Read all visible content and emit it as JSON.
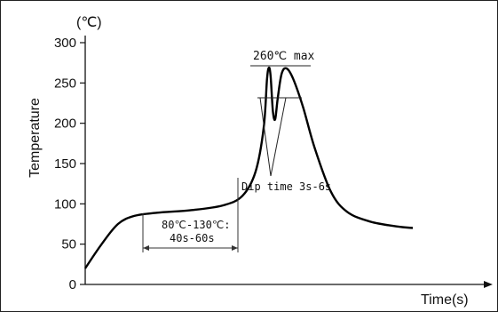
{
  "chart_data": {
    "type": "line",
    "ylabel": "Temperature",
    "yunit": "(℃)",
    "xlabel": "Time(s)",
    "ylim": [
      0,
      300
    ],
    "yticks": [
      0,
      50,
      100,
      150,
      200,
      250,
      300
    ],
    "grid": false,
    "series": [
      {
        "points": [
          {
            "t": 0,
            "y": 20
          },
          {
            "t": 0.05,
            "y": 50
          },
          {
            "t": 0.1,
            "y": 75
          },
          {
            "t": 0.15,
            "y": 85
          },
          {
            "t": 0.22,
            "y": 89
          },
          {
            "t": 0.32,
            "y": 92
          },
          {
            "t": 0.42,
            "y": 98
          },
          {
            "t": 0.48,
            "y": 110
          },
          {
            "t": 0.52,
            "y": 140
          },
          {
            "t": 0.545,
            "y": 195
          },
          {
            "t": 0.555,
            "y": 255
          },
          {
            "t": 0.561,
            "y": 269
          },
          {
            "t": 0.566,
            "y": 258
          },
          {
            "t": 0.573,
            "y": 215
          },
          {
            "t": 0.58,
            "y": 205
          },
          {
            "t": 0.588,
            "y": 232
          },
          {
            "t": 0.6,
            "y": 262
          },
          {
            "t": 0.615,
            "y": 268
          },
          {
            "t": 0.635,
            "y": 255
          },
          {
            "t": 0.665,
            "y": 220
          },
          {
            "t": 0.7,
            "y": 170
          },
          {
            "t": 0.75,
            "y": 115
          },
          {
            "t": 0.8,
            "y": 90
          },
          {
            "t": 0.87,
            "y": 78
          },
          {
            "t": 0.95,
            "y": 72
          },
          {
            "t": 1.0,
            "y": 70
          }
        ]
      }
    ],
    "annotations": {
      "peak_label": "260℃ max",
      "preheat_line1": "80℃-130℃:",
      "preheat_line2": "40s-60s",
      "dip_label": "Dip time 3s-6s"
    }
  }
}
